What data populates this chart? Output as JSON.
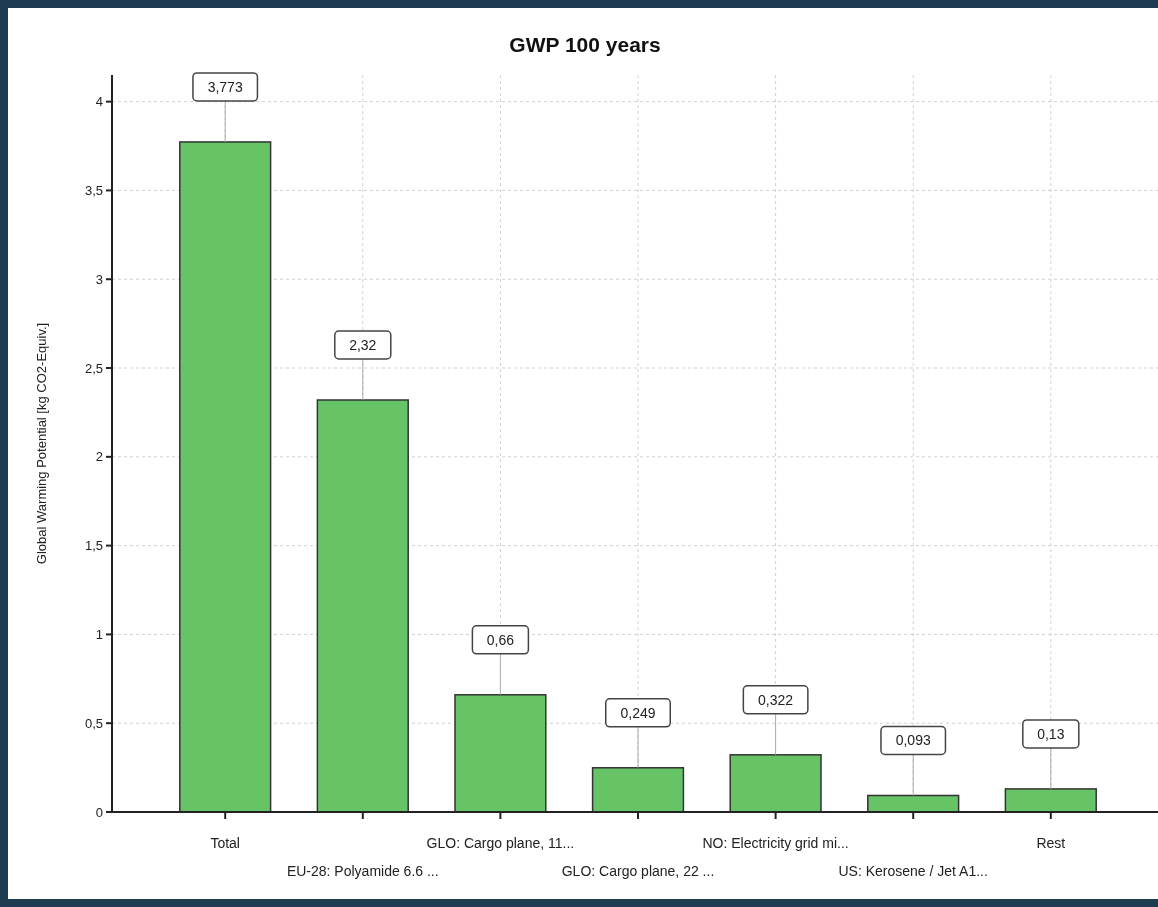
{
  "chart_data": {
    "type": "bar",
    "title": "GWP 100 years",
    "ylabel": "Global Warming Potential [kg CO2-Equiv.]",
    "categories": [
      "Total",
      "EU-28: Polyamide 6.6 ...",
      "GLO: Cargo plane, 11...",
      "GLO: Cargo plane, 22 ...",
      "NO: Electricity grid mi...",
      "US: Kerosene / Jet A1...",
      "Rest"
    ],
    "values": [
      3.773,
      2.32,
      0.66,
      0.249,
      0.322,
      0.093,
      0.13
    ],
    "value_labels": [
      "3,773",
      "2,32",
      "0,66",
      "0,249",
      "0,322",
      "0,093",
      "0,13"
    ],
    "color": "#66c466",
    "ylim": [
      0,
      4.15
    ],
    "yticks": [
      0,
      {
        "value": 0.5,
        "label": "0,5"
      },
      1,
      {
        "value": 1.5,
        "label": "1,5"
      },
      2,
      {
        "value": 2.5,
        "label": "2,5"
      },
      3,
      {
        "value": 3.5,
        "label": "3,5"
      },
      4
    ],
    "grid": true
  }
}
